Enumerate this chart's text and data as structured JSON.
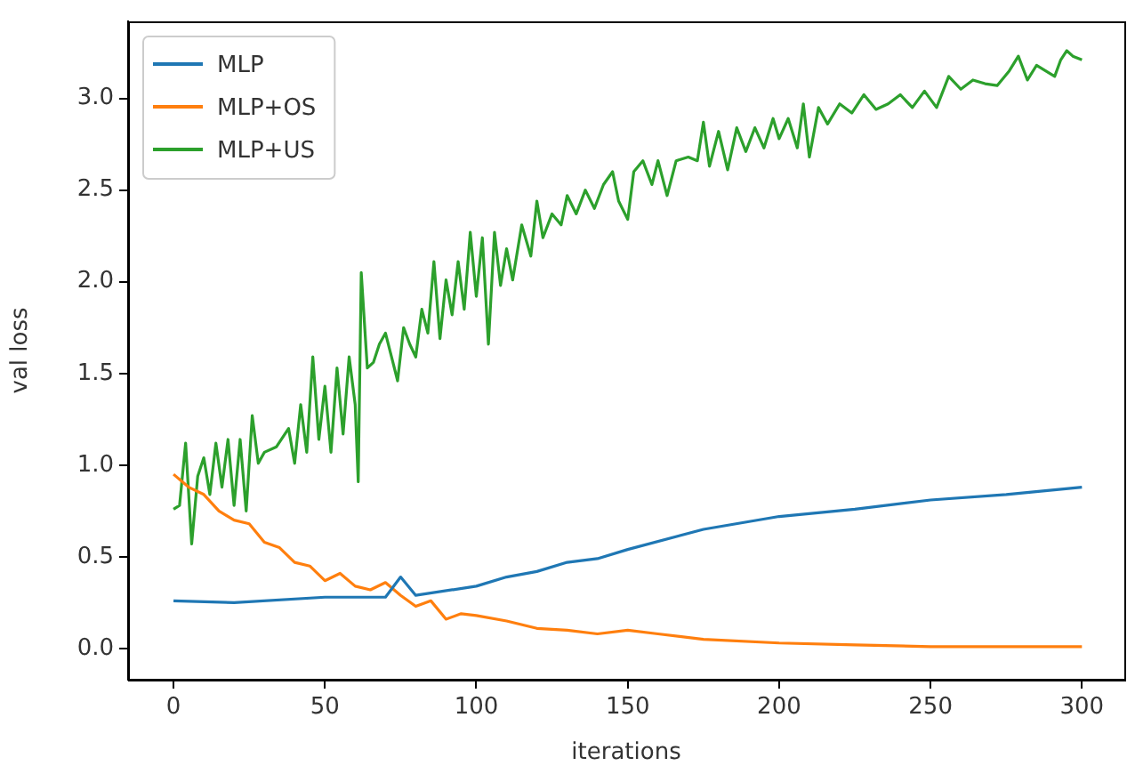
{
  "chart_data": {
    "type": "line",
    "xlabel": "iterations",
    "ylabel": "val loss",
    "xlim": [
      -15,
      314
    ],
    "ylim": [
      -0.17,
      3.42
    ],
    "xticks": [
      0,
      50,
      100,
      150,
      200,
      250,
      300
    ],
    "yticks": [
      {
        "value": 0,
        "label": "0.0"
      },
      {
        "value": 0.5,
        "label": "0.5"
      },
      {
        "value": 1,
        "label": "1.0"
      },
      {
        "value": 1.5,
        "label": "1.5"
      },
      {
        "value": 2,
        "label": "2.0"
      },
      {
        "value": 2.5,
        "label": "2.5"
      },
      {
        "value": 3,
        "label": "3.0"
      }
    ],
    "grid": false,
    "legend": "top left",
    "marker": "none",
    "line_style": "solid",
    "series": [
      {
        "name": "MLP",
        "color": "#1f77b4",
        "x": [
          0,
          20,
          50,
          70,
          75,
          80,
          100,
          110,
          120,
          130,
          140,
          150,
          175,
          200,
          225,
          250,
          275,
          300
        ],
        "values": [
          0.26,
          0.25,
          0.28,
          0.28,
          0.39,
          0.29,
          0.34,
          0.39,
          0.42,
          0.47,
          0.49,
          0.54,
          0.65,
          0.72,
          0.76,
          0.81,
          0.84,
          0.88
        ]
      },
      {
        "name": "MLP+OS",
        "color": "#ff7f0e",
        "x": [
          0,
          5,
          10,
          15,
          20,
          25,
          30,
          35,
          40,
          45,
          50,
          55,
          60,
          65,
          70,
          75,
          80,
          85,
          90,
          95,
          100,
          110,
          120,
          130,
          140,
          150,
          160,
          175,
          200,
          225,
          250,
          275,
          300
        ],
        "values": [
          0.95,
          0.88,
          0.84,
          0.75,
          0.7,
          0.68,
          0.58,
          0.55,
          0.47,
          0.45,
          0.37,
          0.41,
          0.34,
          0.32,
          0.36,
          0.29,
          0.23,
          0.26,
          0.16,
          0.19,
          0.18,
          0.15,
          0.11,
          0.1,
          0.08,
          0.1,
          0.08,
          0.05,
          0.03,
          0.02,
          0.01,
          0.01,
          0.01
        ]
      },
      {
        "name": "MLP+US",
        "color": "#2ca02c",
        "x": [
          0,
          2,
          4,
          6,
          8,
          10,
          12,
          14,
          16,
          18,
          20,
          22,
          24,
          26,
          28,
          30,
          34,
          38,
          40,
          42,
          44,
          46,
          48,
          50,
          52,
          54,
          56,
          58,
          60,
          61,
          62,
          64,
          66,
          68,
          70,
          72,
          74,
          76,
          78,
          80,
          82,
          84,
          86,
          88,
          90,
          92,
          94,
          96,
          98,
          100,
          102,
          104,
          106,
          108,
          110,
          112,
          115,
          118,
          120,
          122,
          125,
          128,
          130,
          133,
          136,
          139,
          142,
          145,
          147,
          150,
          152,
          155,
          158,
          160,
          163,
          166,
          170,
          173,
          175,
          177,
          180,
          183,
          186,
          189,
          192,
          195,
          198,
          200,
          203,
          206,
          208,
          210,
          213,
          216,
          220,
          224,
          228,
          232,
          236,
          240,
          244,
          248,
          252,
          256,
          260,
          264,
          268,
          272,
          276,
          279,
          282,
          285,
          288,
          291,
          293,
          295,
          297,
          300
        ],
        "values": [
          0.76,
          0.78,
          1.12,
          0.57,
          0.94,
          1.04,
          0.84,
          1.12,
          0.88,
          1.14,
          0.78,
          1.14,
          0.75,
          1.27,
          1.01,
          1.07,
          1.1,
          1.2,
          1.01,
          1.33,
          1.07,
          1.59,
          1.14,
          1.43,
          1.07,
          1.53,
          1.17,
          1.59,
          1.33,
          0.91,
          2.05,
          1.53,
          1.56,
          1.66,
          1.72,
          1.59,
          1.46,
          1.75,
          1.66,
          1.59,
          1.85,
          1.72,
          2.11,
          1.69,
          2.01,
          1.82,
          2.11,
          1.85,
          2.27,
          1.92,
          2.24,
          1.66,
          2.27,
          1.98,
          2.18,
          2.01,
          2.31,
          2.14,
          2.44,
          2.24,
          2.37,
          2.31,
          2.47,
          2.37,
          2.5,
          2.4,
          2.53,
          2.6,
          2.44,
          2.34,
          2.6,
          2.66,
          2.53,
          2.66,
          2.47,
          2.66,
          2.68,
          2.66,
          2.87,
          2.63,
          2.82,
          2.61,
          2.84,
          2.71,
          2.84,
          2.73,
          2.89,
          2.78,
          2.89,
          2.73,
          2.97,
          2.68,
          2.95,
          2.86,
          2.97,
          2.92,
          3.02,
          2.94,
          2.97,
          3.02,
          2.95,
          3.04,
          2.95,
          3.12,
          3.05,
          3.1,
          3.08,
          3.07,
          3.15,
          3.23,
          3.1,
          3.18,
          3.15,
          3.12,
          3.21,
          3.26,
          3.23,
          3.21
        ]
      }
    ]
  }
}
